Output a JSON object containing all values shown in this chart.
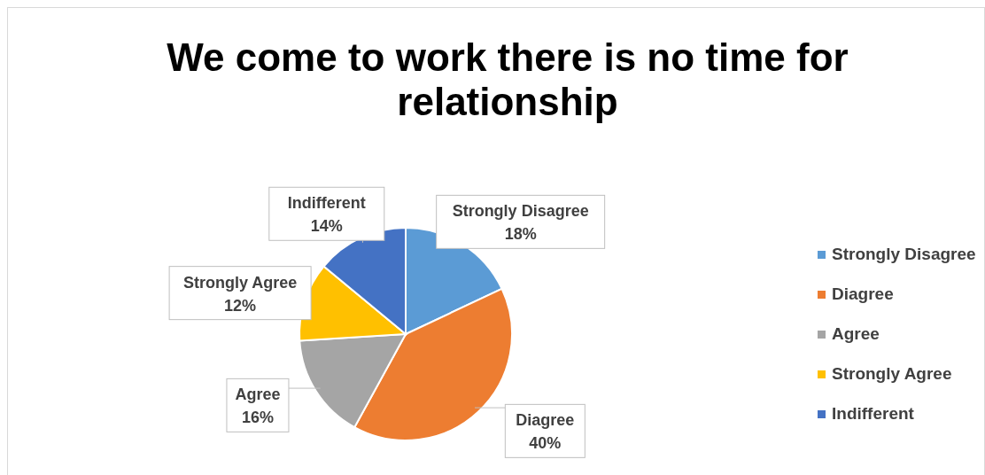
{
  "chart_data": {
    "type": "pie",
    "title": "We come to work there is no time for relationship",
    "categories": [
      "Strongly Disagree",
      "Diagree",
      "Agree",
      "Strongly Agree",
      "Indifferent"
    ],
    "values": [
      18,
      40,
      16,
      12,
      14
    ],
    "colors": [
      "#5b9bd5",
      "#ed7d31",
      "#a5a5a5",
      "#ffc000",
      "#4472c4"
    ],
    "value_labels": [
      "18%",
      "40%",
      "16%",
      "12%",
      "14%"
    ],
    "legend": "right"
  }
}
